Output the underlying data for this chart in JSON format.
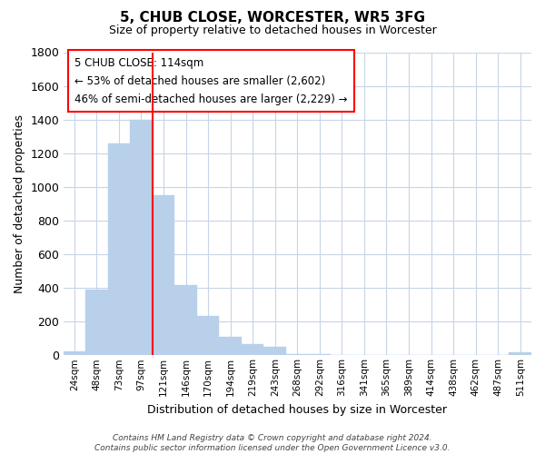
{
  "title": "5, CHUB CLOSE, WORCESTER, WR5 3FG",
  "subtitle": "Size of property relative to detached houses in Worcester",
  "xlabel": "Distribution of detached houses by size in Worcester",
  "ylabel": "Number of detached properties",
  "bar_labels": [
    "24sqm",
    "48sqm",
    "73sqm",
    "97sqm",
    "121sqm",
    "146sqm",
    "170sqm",
    "194sqm",
    "219sqm",
    "243sqm",
    "268sqm",
    "292sqm",
    "316sqm",
    "341sqm",
    "365sqm",
    "389sqm",
    "414sqm",
    "438sqm",
    "462sqm",
    "487sqm",
    "511sqm"
  ],
  "bar_values": [
    25,
    390,
    1260,
    1400,
    950,
    415,
    235,
    110,
    65,
    50,
    5,
    5,
    2,
    2,
    2,
    2,
    2,
    2,
    2,
    2,
    15
  ],
  "bar_color": "#b8d0ea",
  "bar_edge_color": "#b8d0ea",
  "vline_color": "red",
  "ylim": [
    0,
    1800
  ],
  "yticks": [
    0,
    200,
    400,
    600,
    800,
    1000,
    1200,
    1400,
    1600,
    1800
  ],
  "ann_line1": "5 CHUB CLOSE: 114sqm",
  "ann_line2": "← 53% of detached houses are smaller (2,602)",
  "ann_line3": "46% of semi-detached houses are larger (2,229) →",
  "footer_text": "Contains HM Land Registry data © Crown copyright and database right 2024.\nContains public sector information licensed under the Open Government Licence v3.0.",
  "background_color": "#ffffff",
  "grid_color": "#c8d4e8"
}
